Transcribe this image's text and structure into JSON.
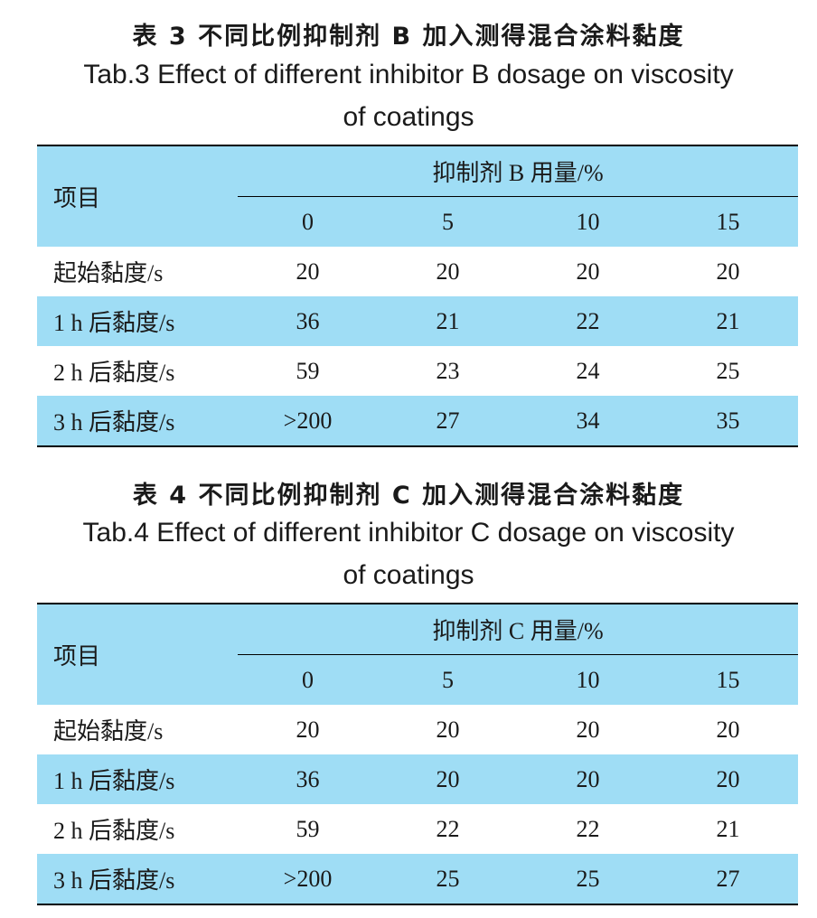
{
  "tables": [
    {
      "title_cn": "表 3  不同比例抑制剂 B 加入测得混合涂料黏度",
      "title_en_line1": "Tab.3 Effect of different inhibitor B dosage on viscosity",
      "title_en_line2": "of coatings",
      "item_header": "项目",
      "group_header": "抑制剂 B 用量/%",
      "columns": [
        "0",
        "5",
        "10",
        "15"
      ],
      "rows": [
        {
          "label": "起始黏度/s",
          "values": [
            "20",
            "20",
            "20",
            "20"
          ]
        },
        {
          "label": "1 h 后黏度/s",
          "values": [
            "36",
            "21",
            "22",
            "21"
          ]
        },
        {
          "label": "2 h 后黏度/s",
          "values": [
            "59",
            "23",
            "24",
            "25"
          ]
        },
        {
          "label": "3 h 后黏度/s",
          "values": [
            ">200",
            "27",
            "34",
            "35"
          ]
        }
      ]
    },
    {
      "title_cn": "表 4  不同比例抑制剂 C 加入测得混合涂料黏度",
      "title_en_line1": "Tab.4 Effect of different inhibitor C dosage on viscosity",
      "title_en_line2": "of coatings",
      "item_header": "项目",
      "group_header": "抑制剂 C 用量/%",
      "columns": [
        "0",
        "5",
        "10",
        "15"
      ],
      "rows": [
        {
          "label": "起始黏度/s",
          "values": [
            "20",
            "20",
            "20",
            "20"
          ]
        },
        {
          "label": "1 h 后黏度/s",
          "values": [
            "36",
            "20",
            "20",
            "20"
          ]
        },
        {
          "label": "2 h 后黏度/s",
          "values": [
            "59",
            "22",
            "22",
            "21"
          ]
        },
        {
          "label": "3 h 后黏度/s",
          "values": [
            ">200",
            "25",
            "25",
            "27"
          ]
        }
      ]
    }
  ],
  "colors": {
    "header_fill": "#9fddf5",
    "rule": "#000000"
  }
}
